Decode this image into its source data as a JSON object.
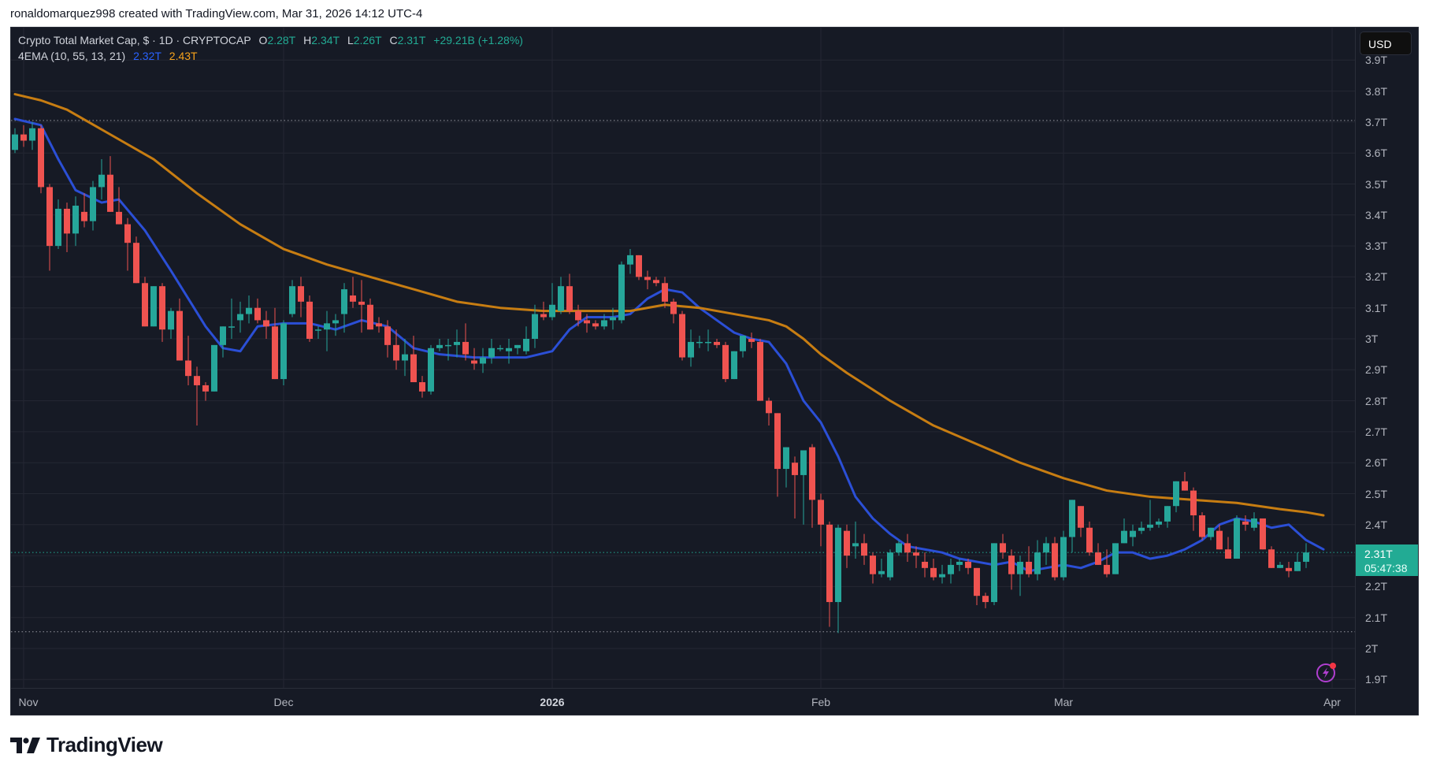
{
  "credit": "ronaldomarquez998 created with TradingView.com, Mar 31, 2026 14:12 UTC-4",
  "legend": {
    "symbol": "Crypto Total Market Cap, $ · 1D · CRYPTOCAP",
    "o_label": "O",
    "o_value": "2.28T",
    "h_label": "H",
    "h_value": "2.34T",
    "l_label": "L",
    "l_value": "2.26T",
    "c_label": "C",
    "c_value": "2.31T",
    "change": "+29.21B (+1.28%)",
    "indicator": "4EMA (10, 55, 13, 21)",
    "ema_fast": "2.32T",
    "ema_slow": "2.43T"
  },
  "currency_button": "USD",
  "price_tag": {
    "price": "2.31T",
    "countdown": "05:47:38"
  },
  "logo_text": "TradingView",
  "colors": {
    "background": "#161a25",
    "grid": "#242733",
    "up": "#26a69a",
    "down": "#ef5350",
    "ema_fast": "#2b4fd6",
    "ema_slow": "#c77d12",
    "axis_text": "#b2b5be",
    "price_tag": "#22ab94"
  },
  "chart_data": {
    "type": "candlestick",
    "title": "Crypto Total Market Cap, $ · 1D · CRYPTOCAP",
    "xlabel": "",
    "ylabel": "USD",
    "ylim": [
      1.86,
      3.96
    ],
    "y_ticks": [
      "3.9T",
      "3.8T",
      "3.7T",
      "3.6T",
      "3.5T",
      "3.4T",
      "3.3T",
      "3.2T",
      "3.1T",
      "3T",
      "2.9T",
      "2.8T",
      "2.7T",
      "2.6T",
      "2.5T",
      "2.4T",
      "2.3T",
      "2.2T",
      "2.1T",
      "2T",
      "1.9T"
    ],
    "y_tick_values": [
      3.9,
      3.8,
      3.7,
      3.6,
      3.5,
      3.4,
      3.3,
      3.2,
      3.1,
      3.0,
      2.9,
      2.8,
      2.7,
      2.6,
      2.5,
      2.4,
      2.3,
      2.2,
      2.1,
      2.0,
      1.9
    ],
    "x_ticks": [
      {
        "label": "Nov",
        "index": 0,
        "bold": false
      },
      {
        "label": "Dec",
        "index": 30,
        "bold": false
      },
      {
        "label": "2026",
        "index": 61,
        "bold": true
      },
      {
        "label": "Feb",
        "index": 92,
        "bold": false
      },
      {
        "label": "Mar",
        "index": 120,
        "bold": false
      },
      {
        "label": "Apr",
        "index": 151,
        "bold": false
      }
    ],
    "start_index": -1,
    "grid": true,
    "reference_lines": [
      {
        "value": 3.705,
        "style": "dotted",
        "color": "#9598a1"
      },
      {
        "value": 2.31,
        "style": "dotted",
        "color": "#22ab94"
      },
      {
        "value": 2.054,
        "style": "dotted",
        "color": "#9598a1"
      }
    ],
    "last": {
      "open": 2.28,
      "high": 2.34,
      "low": 2.26,
      "close": 2.31,
      "change": "+29.21B",
      "change_pct": "+1.28%"
    },
    "ohlc": [
      [
        3.61,
        3.68,
        3.6,
        3.66
      ],
      [
        3.66,
        3.69,
        3.62,
        3.64
      ],
      [
        3.64,
        3.7,
        3.61,
        3.68
      ],
      [
        3.68,
        3.69,
        3.47,
        3.49
      ],
      [
        3.49,
        3.5,
        3.22,
        3.3
      ],
      [
        3.3,
        3.45,
        3.29,
        3.42
      ],
      [
        3.42,
        3.44,
        3.28,
        3.34
      ],
      [
        3.34,
        3.46,
        3.3,
        3.43
      ],
      [
        3.41,
        3.47,
        3.36,
        3.38
      ],
      [
        3.38,
        3.51,
        3.35,
        3.49
      ],
      [
        3.49,
        3.58,
        3.45,
        3.53
      ],
      [
        3.53,
        3.59,
        3.42,
        3.41
      ],
      [
        3.41,
        3.49,
        3.37,
        3.37
      ],
      [
        3.37,
        3.39,
        3.22,
        3.31
      ],
      [
        3.31,
        3.33,
        3.18,
        3.18
      ],
      [
        3.18,
        3.2,
        3.08,
        3.04
      ],
      [
        3.04,
        3.15,
        3.04,
        3.17
      ],
      [
        3.17,
        3.18,
        2.99,
        3.03
      ],
      [
        3.03,
        3.1,
        3.0,
        3.09
      ],
      [
        3.09,
        3.13,
        3.0,
        2.93
      ],
      [
        2.93,
        3.01,
        2.85,
        2.88
      ],
      [
        2.88,
        2.91,
        2.72,
        2.85
      ],
      [
        2.85,
        2.86,
        2.8,
        2.83
      ],
      [
        2.83,
        2.97,
        2.84,
        2.98
      ],
      [
        2.98,
        3.03,
        2.94,
        3.04
      ],
      [
        3.04,
        3.13,
        3.0,
        3.04
      ],
      [
        3.06,
        3.12,
        3.02,
        3.08
      ],
      [
        3.08,
        3.14,
        3.05,
        3.1
      ],
      [
        3.1,
        3.13,
        3.05,
        3.06
      ],
      [
        3.06,
        3.09,
        3.0,
        3.04
      ],
      [
        3.04,
        3.1,
        2.87,
        2.87
      ],
      [
        2.87,
        3.06,
        2.85,
        3.05
      ],
      [
        3.08,
        3.19,
        3.07,
        3.17
      ],
      [
        3.17,
        3.2,
        3.07,
        3.12
      ],
      [
        3.12,
        3.14,
        2.99,
        3.0
      ],
      [
        3.03,
        3.04,
        3.0,
        3.03
      ],
      [
        3.03,
        3.09,
        2.96,
        3.05
      ],
      [
        3.05,
        3.08,
        3.01,
        3.06
      ],
      [
        3.08,
        3.18,
        3.02,
        3.16
      ],
      [
        3.14,
        3.2,
        3.1,
        3.12
      ],
      [
        3.12,
        3.19,
        3.02,
        3.11
      ],
      [
        3.11,
        3.13,
        3.05,
        3.03
      ],
      [
        3.05,
        3.07,
        3.02,
        3.04
      ],
      [
        3.04,
        3.06,
        2.94,
        2.98
      ],
      [
        2.98,
        3.03,
        2.9,
        2.93
      ],
      [
        2.93,
        3.0,
        2.88,
        2.95
      ],
      [
        2.95,
        3.01,
        2.86,
        2.86
      ],
      [
        2.86,
        2.88,
        2.81,
        2.83
      ],
      [
        2.83,
        2.98,
        2.82,
        2.97
      ],
      [
        2.97,
        3.0,
        2.96,
        2.98
      ],
      [
        2.98,
        3.0,
        2.93,
        2.98
      ],
      [
        2.98,
        3.03,
        2.94,
        2.99
      ],
      [
        2.99,
        3.05,
        2.93,
        2.95
      ],
      [
        2.93,
        2.97,
        2.9,
        2.92
      ],
      [
        2.92,
        2.97,
        2.89,
        2.94
      ],
      [
        2.94,
        3.0,
        2.92,
        2.97
      ],
      [
        2.97,
        2.98,
        2.96,
        2.97
      ],
      [
        2.96,
        3.0,
        2.92,
        2.97
      ],
      [
        2.97,
        2.98,
        2.95,
        2.98
      ],
      [
        2.96,
        3.04,
        2.95,
        3.0
      ],
      [
        3.0,
        3.11,
        2.97,
        3.08
      ],
      [
        3.08,
        3.12,
        3.06,
        3.07
      ],
      [
        3.07,
        3.18,
        3.06,
        3.11
      ],
      [
        3.09,
        3.2,
        3.08,
        3.17
      ],
      [
        3.17,
        3.21,
        3.08,
        3.09
      ],
      [
        3.09,
        3.11,
        3.04,
        3.06
      ],
      [
        3.06,
        3.08,
        3.02,
        3.05
      ],
      [
        3.05,
        3.06,
        3.03,
        3.04
      ],
      [
        3.04,
        3.08,
        3.03,
        3.06
      ],
      [
        3.06,
        3.1,
        3.03,
        3.07
      ],
      [
        3.06,
        3.25,
        3.05,
        3.24
      ],
      [
        3.24,
        3.29,
        3.21,
        3.27
      ],
      [
        3.27,
        3.25,
        3.19,
        3.2
      ],
      [
        3.2,
        3.22,
        3.16,
        3.19
      ],
      [
        3.19,
        3.2,
        3.17,
        3.18
      ],
      [
        3.18,
        3.2,
        3.1,
        3.12
      ],
      [
        3.12,
        3.13,
        3.05,
        3.08
      ],
      [
        3.08,
        3.09,
        2.93,
        2.94
      ],
      [
        2.94,
        3.03,
        2.91,
        2.99
      ],
      [
        2.99,
        3.01,
        2.97,
        2.99
      ],
      [
        2.99,
        3.03,
        2.96,
        2.99
      ],
      [
        2.99,
        3.0,
        2.97,
        2.98
      ],
      [
        2.98,
        2.99,
        2.86,
        2.87
      ],
      [
        2.87,
        2.96,
        2.87,
        2.96
      ],
      [
        2.96,
        3.0,
        2.94,
        3.01
      ],
      [
        3.0,
        3.02,
        2.97,
        2.99
      ],
      [
        2.99,
        3.0,
        2.8,
        2.8
      ],
      [
        2.8,
        2.81,
        2.72,
        2.76
      ],
      [
        2.76,
        2.76,
        2.49,
        2.58
      ],
      [
        2.58,
        2.65,
        2.52,
        2.65
      ],
      [
        2.6,
        2.62,
        2.42,
        2.56
      ],
      [
        2.56,
        2.64,
        2.4,
        2.64
      ],
      [
        2.65,
        2.66,
        2.39,
        2.48
      ],
      [
        2.48,
        2.5,
        2.33,
        2.4
      ],
      [
        2.4,
        2.41,
        2.07,
        2.15
      ],
      [
        2.15,
        2.4,
        2.05,
        2.39
      ],
      [
        2.38,
        2.4,
        2.26,
        2.3
      ],
      [
        2.33,
        2.41,
        2.29,
        2.34
      ],
      [
        2.34,
        2.37,
        2.27,
        2.3
      ],
      [
        2.3,
        2.31,
        2.21,
        2.24
      ],
      [
        2.24,
        2.29,
        2.23,
        2.25
      ],
      [
        2.23,
        2.32,
        2.22,
        2.31
      ],
      [
        2.31,
        2.35,
        2.3,
        2.34
      ],
      [
        2.34,
        2.37,
        2.28,
        2.31
      ],
      [
        2.31,
        2.33,
        2.26,
        2.3
      ],
      [
        2.28,
        2.31,
        2.23,
        2.26
      ],
      [
        2.26,
        2.29,
        2.22,
        2.23
      ],
      [
        2.23,
        2.27,
        2.21,
        2.24
      ],
      [
        2.24,
        2.29,
        2.21,
        2.27
      ],
      [
        2.27,
        2.29,
        2.25,
        2.28
      ],
      [
        2.28,
        2.29,
        2.24,
        2.26
      ],
      [
        2.26,
        2.26,
        2.14,
        2.17
      ],
      [
        2.17,
        2.18,
        2.13,
        2.15
      ],
      [
        2.15,
        2.34,
        2.14,
        2.34
      ],
      [
        2.34,
        2.37,
        2.29,
        2.31
      ],
      [
        2.3,
        2.32,
        2.19,
        2.24
      ],
      [
        2.24,
        2.3,
        2.17,
        2.28
      ],
      [
        2.28,
        2.33,
        2.23,
        2.24
      ],
      [
        2.24,
        2.35,
        2.22,
        2.31
      ],
      [
        2.31,
        2.36,
        2.27,
        2.34
      ],
      [
        2.34,
        2.36,
        2.22,
        2.23
      ],
      [
        2.23,
        2.38,
        2.22,
        2.36
      ],
      [
        2.36,
        2.48,
        2.31,
        2.48
      ],
      [
        2.46,
        2.44,
        2.36,
        2.39
      ],
      [
        2.39,
        2.41,
        2.3,
        2.31
      ],
      [
        2.31,
        2.34,
        2.27,
        2.27
      ],
      [
        2.27,
        2.32,
        2.23,
        2.24
      ],
      [
        2.24,
        2.33,
        2.24,
        2.34
      ],
      [
        2.34,
        2.42,
        2.34,
        2.38
      ],
      [
        2.36,
        2.4,
        2.33,
        2.38
      ],
      [
        2.38,
        2.41,
        2.37,
        2.39
      ],
      [
        2.39,
        2.48,
        2.38,
        2.4
      ],
      [
        2.4,
        2.42,
        2.39,
        2.41
      ],
      [
        2.41,
        2.44,
        2.39,
        2.46
      ],
      [
        2.46,
        2.54,
        2.44,
        2.54
      ],
      [
        2.54,
        2.57,
        2.51,
        2.51
      ],
      [
        2.51,
        2.52,
        2.38,
        2.43
      ],
      [
        2.43,
        2.44,
        2.35,
        2.36
      ],
      [
        2.36,
        2.39,
        2.35,
        2.39
      ],
      [
        2.38,
        2.4,
        2.33,
        2.32
      ],
      [
        2.32,
        2.36,
        2.29,
        2.29
      ],
      [
        2.29,
        2.43,
        2.29,
        2.42
      ],
      [
        2.41,
        2.43,
        2.38,
        2.4
      ],
      [
        2.39,
        2.44,
        2.38,
        2.42
      ],
      [
        2.42,
        2.42,
        2.32,
        2.32
      ],
      [
        2.32,
        2.33,
        2.26,
        2.26
      ],
      [
        2.26,
        2.28,
        2.26,
        2.27
      ],
      [
        2.26,
        2.28,
        2.23,
        2.25
      ],
      [
        2.25,
        2.31,
        2.25,
        2.28
      ],
      [
        2.28,
        2.34,
        2.26,
        2.31
      ]
    ],
    "series": [
      {
        "name": "EMA 10",
        "color": "#2b4fd6",
        "last": 2.32,
        "points": [
          [
            -1,
            3.71
          ],
          [
            2,
            3.69
          ],
          [
            4,
            3.58
          ],
          [
            6,
            3.48
          ],
          [
            9,
            3.44
          ],
          [
            11,
            3.45
          ],
          [
            14,
            3.35
          ],
          [
            17,
            3.22
          ],
          [
            21,
            3.04
          ],
          [
            23,
            2.97
          ],
          [
            25,
            2.96
          ],
          [
            27,
            3.04
          ],
          [
            30,
            3.05
          ],
          [
            33,
            3.05
          ],
          [
            36,
            3.03
          ],
          [
            39,
            3.06
          ],
          [
            42,
            3.04
          ],
          [
            45,
            2.97
          ],
          [
            48,
            2.95
          ],
          [
            52,
            2.94
          ],
          [
            55,
            2.94
          ],
          [
            58,
            2.94
          ],
          [
            61,
            2.96
          ],
          [
            63,
            3.03
          ],
          [
            65,
            3.07
          ],
          [
            68,
            3.07
          ],
          [
            70,
            3.08
          ],
          [
            72,
            3.13
          ],
          [
            74,
            3.16
          ],
          [
            76,
            3.15
          ],
          [
            78,
            3.1
          ],
          [
            80,
            3.06
          ],
          [
            82,
            3.02
          ],
          [
            84,
            3.0
          ],
          [
            86,
            2.99
          ],
          [
            88,
            2.92
          ],
          [
            90,
            2.8
          ],
          [
            92,
            2.73
          ],
          [
            94,
            2.62
          ],
          [
            96,
            2.49
          ],
          [
            98,
            2.42
          ],
          [
            100,
            2.37
          ],
          [
            102,
            2.33
          ],
          [
            104,
            2.32
          ],
          [
            106,
            2.31
          ],
          [
            108,
            2.29
          ],
          [
            110,
            2.28
          ],
          [
            112,
            2.27
          ],
          [
            114,
            2.28
          ],
          [
            116,
            2.25
          ],
          [
            118,
            2.26
          ],
          [
            120,
            2.27
          ],
          [
            122,
            2.26
          ],
          [
            124,
            2.28
          ],
          [
            126,
            2.31
          ],
          [
            128,
            2.31
          ],
          [
            130,
            2.29
          ],
          [
            132,
            2.3
          ],
          [
            134,
            2.32
          ],
          [
            136,
            2.35
          ],
          [
            138,
            2.4
          ],
          [
            140,
            2.42
          ],
          [
            142,
            2.41
          ],
          [
            144,
            2.39
          ],
          [
            146,
            2.4
          ],
          [
            148,
            2.35
          ],
          [
            150,
            2.32
          ]
        ]
      },
      {
        "name": "EMA 55",
        "color": "#c77d12",
        "last": 2.43,
        "points": [
          [
            -1,
            3.79
          ],
          [
            2,
            3.77
          ],
          [
            5,
            3.74
          ],
          [
            10,
            3.66
          ],
          [
            15,
            3.58
          ],
          [
            20,
            3.47
          ],
          [
            25,
            3.37
          ],
          [
            30,
            3.29
          ],
          [
            35,
            3.24
          ],
          [
            40,
            3.2
          ],
          [
            45,
            3.16
          ],
          [
            50,
            3.12
          ],
          [
            55,
            3.1
          ],
          [
            60,
            3.09
          ],
          [
            65,
            3.09
          ],
          [
            70,
            3.09
          ],
          [
            74,
            3.11
          ],
          [
            78,
            3.1
          ],
          [
            82,
            3.08
          ],
          [
            86,
            3.06
          ],
          [
            88,
            3.04
          ],
          [
            90,
            3.0
          ],
          [
            92,
            2.95
          ],
          [
            95,
            2.89
          ],
          [
            100,
            2.8
          ],
          [
            105,
            2.72
          ],
          [
            110,
            2.66
          ],
          [
            115,
            2.6
          ],
          [
            120,
            2.55
          ],
          [
            125,
            2.51
          ],
          [
            130,
            2.49
          ],
          [
            135,
            2.48
          ],
          [
            140,
            2.47
          ],
          [
            145,
            2.45
          ],
          [
            148,
            2.44
          ],
          [
            150,
            2.43
          ]
        ]
      }
    ]
  }
}
